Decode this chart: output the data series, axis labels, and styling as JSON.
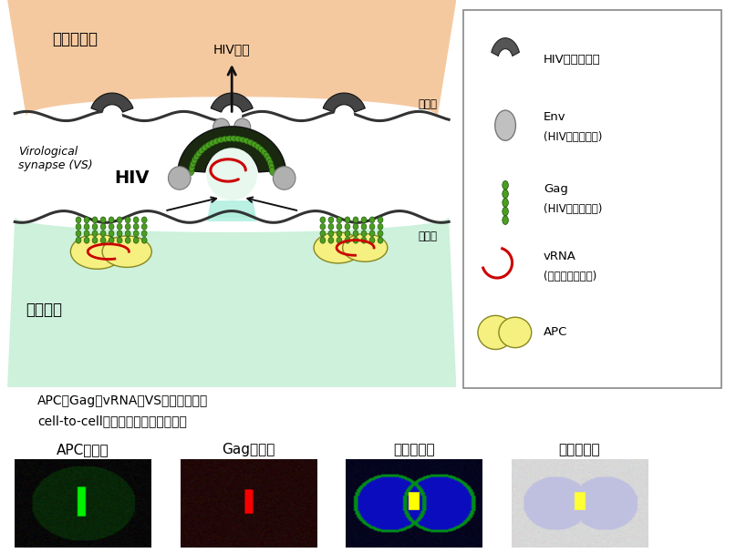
{
  "bg_color": "#ffffff",
  "upper_cell_color": "#f5c9a0",
  "lower_cell_color": "#c8f0d8",
  "receptor_color": "#444444",
  "gag_color": "#4a9e20",
  "gag_dark": "#1a5008",
  "vrna_color": "#cc0000",
  "apc_color": "#f5f080",
  "apc_border": "#888820",
  "env_color": "#b0b0b0",
  "env_border": "#777777",
  "arrow_color": "#111111",
  "text_main": "#000000",
  "hiv_dark": "#1a1a1a",
  "membrane_color": "#333333",
  "label_hiv_invasion": "HIV侵入",
  "label_non_infected": "非感染細胞",
  "label_infected": "感染細胞",
  "label_cell_membrane": "細胞膜",
  "label_vs": "Virological\nsynapse (VS)",
  "label_hiv": "HIV",
  "label_apc_text": "APCはGagやvRNAをVSに集積させ、\ncell-to-cell感染伝播を促進している",
  "photo_labels": [
    "APC蛋白質",
    "Gag蛋白質",
    "重ねあわせ",
    "微分干渉像"
  ]
}
